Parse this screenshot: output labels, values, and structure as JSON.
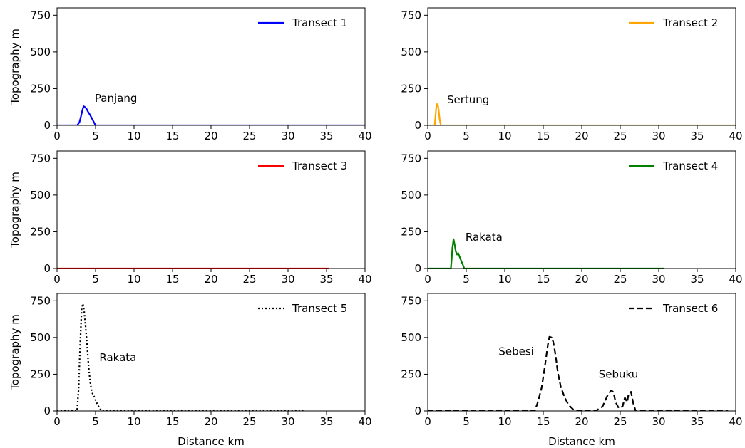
{
  "chart_data": [
    {
      "type": "line",
      "xlim": [
        0,
        40
      ],
      "ylim": [
        0,
        800
      ],
      "xticks": [
        0,
        5,
        10,
        15,
        20,
        25,
        30,
        35,
        40
      ],
      "yticks": [
        0,
        250,
        500,
        750
      ],
      "xlabel": "",
      "ylabel": "Topography m",
      "legend": "top-right",
      "series": [
        {
          "name": "Transect 1",
          "color": "#0000ff",
          "dash": "solid",
          "x": [
            0,
            2.6,
            2.9,
            3.1,
            3.3,
            3.45,
            3.6,
            3.8,
            4.0,
            4.3,
            4.6,
            4.8,
            5.0,
            40
          ],
          "y": [
            0,
            0,
            20,
            60,
            105,
            130,
            125,
            115,
            95,
            70,
            40,
            20,
            0,
            0
          ]
        }
      ],
      "annotations": [
        {
          "text": "Panjang",
          "x": 4.9,
          "y": 160
        }
      ]
    },
    {
      "type": "line",
      "xlim": [
        0,
        40
      ],
      "ylim": [
        0,
        800
      ],
      "xticks": [
        0,
        5,
        10,
        15,
        20,
        25,
        30,
        35,
        40
      ],
      "yticks": [
        0,
        250,
        500,
        750
      ],
      "xlabel": "",
      "ylabel": "",
      "legend": "top-right",
      "series": [
        {
          "name": "Transect 2",
          "color": "#ffa500",
          "dash": "solid",
          "x": [
            0,
            0.9,
            1.0,
            1.1,
            1.2,
            1.3,
            1.4,
            1.55,
            1.7,
            40
          ],
          "y": [
            0,
            0,
            60,
            120,
            145,
            140,
            110,
            40,
            0,
            0
          ]
        }
      ],
      "annotations": [
        {
          "text": "Sertung",
          "x": 2.5,
          "y": 150
        }
      ]
    },
    {
      "type": "line",
      "xlim": [
        0,
        40
      ],
      "ylim": [
        0,
        800
      ],
      "xticks": [
        0,
        5,
        10,
        15,
        20,
        25,
        30,
        35,
        40
      ],
      "yticks": [
        0,
        250,
        500,
        750
      ],
      "xlabel": "",
      "ylabel": "Topography m",
      "legend": "top-right",
      "series": [
        {
          "name": "Transect 3",
          "color": "#ff0000",
          "dash": "solid",
          "x": [
            0,
            35.3
          ],
          "y": [
            0,
            0
          ]
        }
      ],
      "annotations": []
    },
    {
      "type": "line",
      "xlim": [
        0,
        40
      ],
      "ylim": [
        0,
        800
      ],
      "xticks": [
        0,
        5,
        10,
        15,
        20,
        25,
        30,
        35,
        40
      ],
      "yticks": [
        0,
        250,
        500,
        750
      ],
      "xlabel": "",
      "ylabel": "",
      "legend": "top-right",
      "series": [
        {
          "name": "Transect 4",
          "color": "#008000",
          "dash": "solid",
          "x": [
            0,
            3.0,
            3.1,
            3.2,
            3.35,
            3.5,
            3.65,
            3.8,
            3.95,
            4.1,
            4.25,
            4.4,
            4.6,
            4.75,
            30.7
          ],
          "y": [
            0,
            0,
            60,
            140,
            200,
            160,
            115,
            95,
            105,
            85,
            65,
            45,
            20,
            0,
            0
          ]
        }
      ],
      "annotations": [
        {
          "text": "Rakata",
          "x": 4.9,
          "y": 190
        }
      ]
    },
    {
      "type": "line",
      "xlim": [
        0,
        40
      ],
      "ylim": [
        0,
        800
      ],
      "xticks": [
        0,
        5,
        10,
        15,
        20,
        25,
        30,
        35,
        40
      ],
      "yticks": [
        0,
        250,
        500,
        750
      ],
      "xlabel": "Distance km",
      "ylabel": "Topography m",
      "legend": "top-right",
      "series": [
        {
          "name": "Transect 5",
          "color": "#000000",
          "dash": "dotted",
          "x": [
            0,
            2.6,
            2.8,
            3.0,
            3.2,
            3.35,
            3.5,
            3.7,
            3.9,
            4.1,
            4.3,
            4.5,
            4.8,
            5.1,
            5.5,
            5.8,
            32
          ],
          "y": [
            0,
            0,
            150,
            450,
            700,
            730,
            690,
            580,
            450,
            300,
            200,
            130,
            100,
            60,
            20,
            0,
            0
          ]
        }
      ],
      "annotations": [
        {
          "text": "Rakata",
          "x": 5.5,
          "y": 340
        }
      ]
    },
    {
      "type": "line",
      "xlim": [
        0,
        40
      ],
      "ylim": [
        0,
        800
      ],
      "xticks": [
        0,
        5,
        10,
        15,
        20,
        25,
        30,
        35,
        40
      ],
      "yticks": [
        0,
        250,
        500,
        750
      ],
      "xlabel": "Distance km",
      "ylabel": "",
      "legend": "top-right",
      "series": [
        {
          "name": "Transect 6",
          "color": "#000000",
          "dash": "dashed",
          "x": [
            0,
            13.9,
            14.3,
            14.8,
            15.2,
            15.6,
            15.8,
            16.1,
            16.3,
            16.6,
            16.9,
            17.3,
            17.8,
            18.3,
            18.9,
            19.5,
            21.8,
            22.7,
            23.3,
            23.8,
            24.1,
            24.4,
            24.8,
            25.3,
            25.6,
            25.9,
            26.1,
            26.4,
            26.7,
            27.0,
            39
          ],
          "y": [
            0,
            0,
            60,
            160,
            300,
            450,
            505,
            500,
            470,
            380,
            260,
            160,
            90,
            40,
            10,
            0,
            0,
            30,
            100,
            140,
            130,
            60,
            20,
            30,
            90,
            60,
            120,
            130,
            50,
            0,
            0
          ]
        }
      ],
      "annotations": [
        {
          "text": "Sebesi",
          "x": 9.2,
          "y": 380
        },
        {
          "text": "Sebuku",
          "x": 22.2,
          "y": 225
        }
      ]
    }
  ]
}
